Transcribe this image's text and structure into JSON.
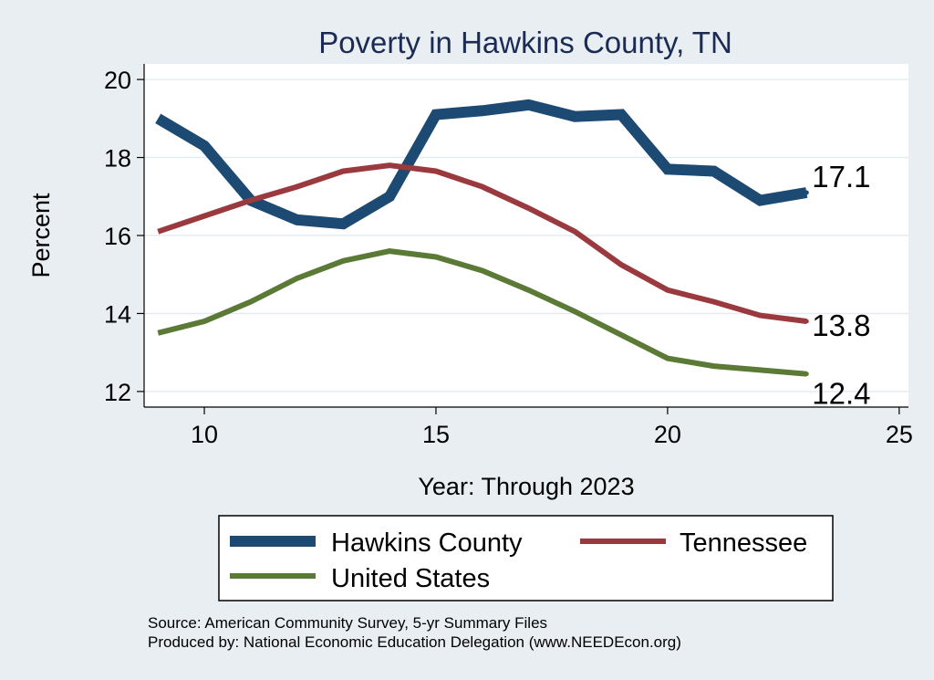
{
  "chart_data": {
    "type": "line",
    "title": "Poverty in Hawkins County, TN",
    "xlabel": "Year: Through 2023",
    "ylabel": "Percent",
    "xlim": [
      8.7,
      25.2
    ],
    "ylim": [
      11.6,
      20.4
    ],
    "xticks": [
      "10",
      "15",
      "20",
      "25"
    ],
    "yticks": [
      "12",
      "14",
      "16",
      "18",
      "20"
    ],
    "grid": true,
    "x": [
      9,
      10,
      11,
      12,
      13,
      14,
      15,
      16,
      17,
      18,
      19,
      20,
      21,
      22,
      23
    ],
    "series": [
      {
        "name": "Hawkins County",
        "color": "#1c4a72",
        "values": [
          19.0,
          18.3,
          16.9,
          16.4,
          16.3,
          17.0,
          19.1,
          19.2,
          19.35,
          19.05,
          19.1,
          17.7,
          17.65,
          16.9,
          17.1
        ],
        "end_label": "17.1"
      },
      {
        "name": "Tennessee",
        "color": "#9b3a3e",
        "values": [
          16.1,
          16.5,
          16.9,
          17.25,
          17.65,
          17.8,
          17.65,
          17.25,
          16.7,
          16.1,
          15.25,
          14.6,
          14.3,
          13.95,
          13.8
        ],
        "end_label": "13.8"
      },
      {
        "name": "United States",
        "color": "#5a7a35",
        "values": [
          13.5,
          13.8,
          14.3,
          14.9,
          15.35,
          15.6,
          15.45,
          15.1,
          14.6,
          14.05,
          13.45,
          12.85,
          12.65,
          12.55,
          12.45
        ],
        "end_label": "12.4"
      }
    ],
    "legend": {
      "placement": "bottom",
      "entries": [
        "Hawkins County",
        "Tennessee",
        "United States"
      ]
    }
  },
  "source_note": "Source: American Community Survey, 5-yr Summary Files",
  "produced_by": "Produced by: National Economic Education Delegation (www.NEEDEcon.org)"
}
